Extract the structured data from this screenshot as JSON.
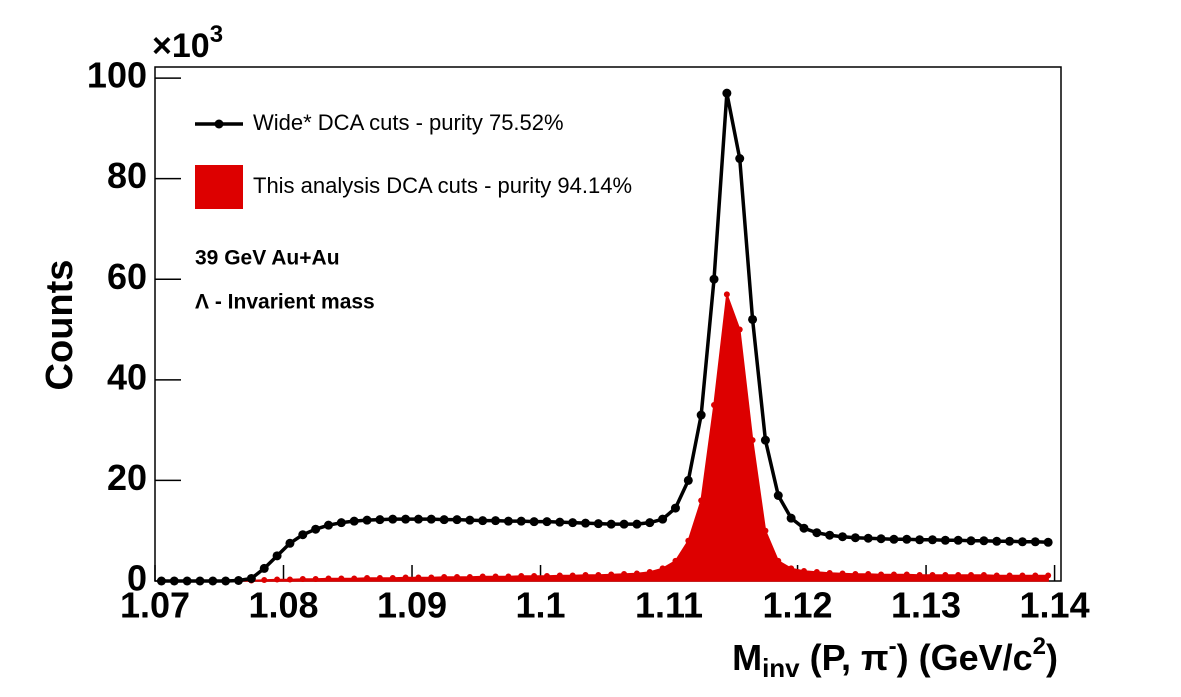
{
  "chart_data": {
    "type": "line_area",
    "y_label": "Counts",
    "x_label_parts": [
      "M",
      "inv",
      " (P, π",
      "-",
      ") (GeV/c",
      "2",
      ")"
    ],
    "axis_multiplier": [
      "×10",
      "3"
    ],
    "annotations": [
      "39 GeV Au+Au",
      "Λ - Invarient mass"
    ],
    "x": [
      1.0705,
      1.0715,
      1.0725,
      1.0735,
      1.0745,
      1.0755,
      1.0765,
      1.0775,
      1.0785,
      1.0795,
      1.0805,
      1.0815,
      1.0825,
      1.0835,
      1.0845,
      1.0855,
      1.0865,
      1.0875,
      1.0885,
      1.0895,
      1.0905,
      1.0915,
      1.0925,
      1.0935,
      1.0945,
      1.0955,
      1.0965,
      1.0975,
      1.0985,
      1.0995,
      1.1005,
      1.1015,
      1.1025,
      1.1035,
      1.1045,
      1.1055,
      1.1065,
      1.1075,
      1.1085,
      1.1095,
      1.1105,
      1.1115,
      1.1125,
      1.1135,
      1.1145,
      1.1155,
      1.1165,
      1.1175,
      1.1185,
      1.1195,
      1.1205,
      1.1215,
      1.1225,
      1.1235,
      1.1245,
      1.1255,
      1.1265,
      1.1275,
      1.1285,
      1.1295,
      1.1305,
      1.1315,
      1.1325,
      1.1335,
      1.1345,
      1.1355,
      1.1365,
      1.1375,
      1.1385,
      1.1395
    ],
    "series": [
      {
        "name": "Wide* DCA cuts - purity 75.52%",
        "color": "#000000",
        "style": "line",
        "values": [
          0,
          0,
          0,
          0,
          0,
          0,
          0.1,
          0.5,
          2.5,
          5,
          7.5,
          9.2,
          10.3,
          11.1,
          11.6,
          11.9,
          12.1,
          12.2,
          12.3,
          12.3,
          12.3,
          12.3,
          12.2,
          12.2,
          12.1,
          12.0,
          12.0,
          11.9,
          11.9,
          11.8,
          11.8,
          11.7,
          11.6,
          11.5,
          11.4,
          11.3,
          11.3,
          11.3,
          11.6,
          12.3,
          14.5,
          20,
          33,
          60,
          97,
          84,
          52,
          28,
          17,
          12.5,
          10.5,
          9.6,
          9.1,
          8.8,
          8.6,
          8.5,
          8.4,
          8.3,
          8.3,
          8.2,
          8.2,
          8.1,
          8.1,
          8.0,
          8.0,
          7.9,
          7.9,
          7.8,
          7.8,
          7.7
        ]
      },
      {
        "name": "This analysis DCA cuts - purity 94.14%",
        "color": "#dd0000",
        "style": "area",
        "values": [
          0,
          0,
          0,
          0,
          0,
          0,
          0,
          0.1,
          0.2,
          0.3,
          0.3,
          0.4,
          0.4,
          0.5,
          0.5,
          0.5,
          0.6,
          0.6,
          0.6,
          0.7,
          0.7,
          0.7,
          0.8,
          0.8,
          0.8,
          0.9,
          0.9,
          0.9,
          1.0,
          1.0,
          1.0,
          1.1,
          1.1,
          1.2,
          1.2,
          1.3,
          1.4,
          1.5,
          1.8,
          2.5,
          4,
          8,
          16,
          35,
          57,
          50,
          28,
          10,
          4,
          2.5,
          2,
          1.8,
          1.6,
          1.5,
          1.4,
          1.4,
          1.3,
          1.3,
          1.3,
          1.2,
          1.2,
          1.2,
          1.2,
          1.2,
          1.2,
          1.1,
          1.1,
          1.1,
          1.1,
          1.1
        ]
      }
    ],
    "xlim": [
      1.07,
      1.1405
    ],
    "ylim": [
      0,
      102.2
    ],
    "xticks": [
      1.07,
      1.08,
      1.09,
      1.1,
      1.11,
      1.12,
      1.13,
      1.14
    ],
    "yticks": [
      0,
      20,
      40,
      60,
      80,
      100
    ],
    "legend": "top-left"
  }
}
